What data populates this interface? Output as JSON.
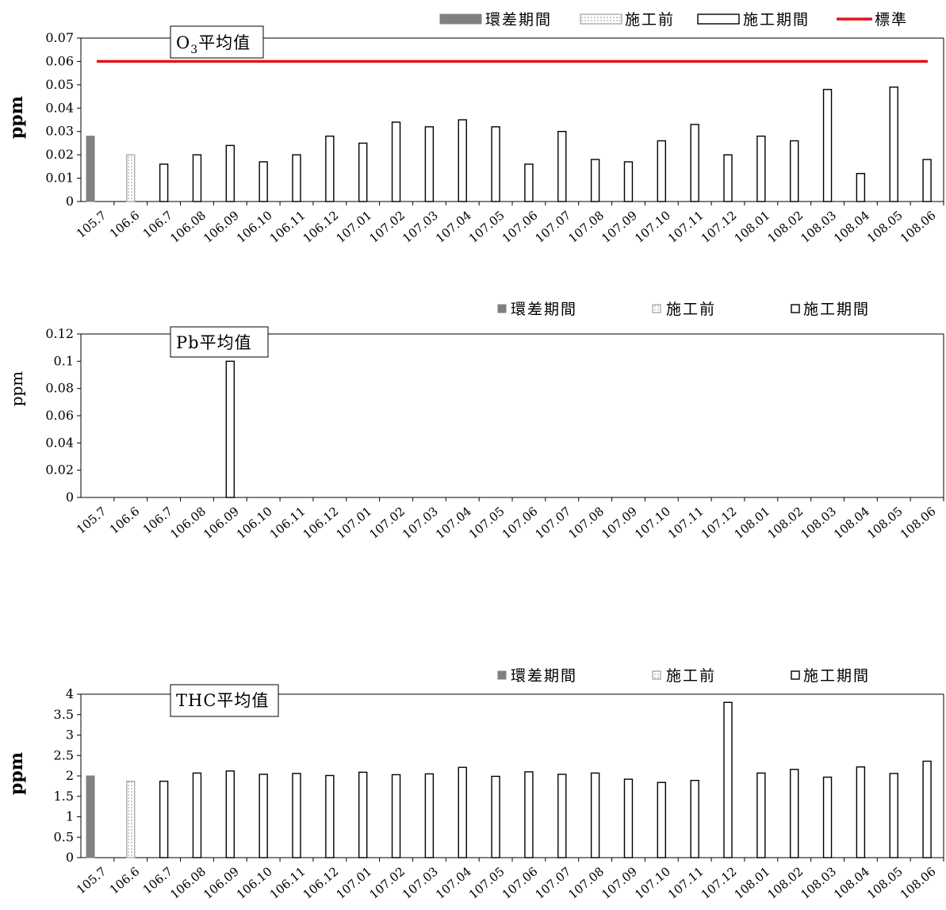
{
  "chart_data": [
    {
      "type": "bar",
      "title": "O3平均值",
      "title_main": "O",
      "title_sub": "3",
      "title_rest": "平均值",
      "ylabel": "ppm",
      "ylabel_bold": true,
      "ylim": [
        0,
        0.07
      ],
      "yticks": [
        "0",
        "0.01",
        "0.02",
        "0.03",
        "0.04",
        "0.05",
        "0.06",
        "0.07"
      ],
      "grid": false,
      "legend_position": "top-right",
      "legend": [
        {
          "label": "環差期間",
          "style": "baseline"
        },
        {
          "label": "施工前",
          "style": "pre"
        },
        {
          "label": "施工期間",
          "style": "during"
        },
        {
          "label": "標準",
          "style": "standard-line"
        }
      ],
      "standard": {
        "name": "標準",
        "value": 0.06,
        "color": "#e3141a"
      },
      "categories": [
        "105.7",
        "106.6",
        "106.7",
        "106.08",
        "106.09",
        "106.10",
        "106.11",
        "106.12",
        "107.01",
        "107.02",
        "107.03",
        "107.04",
        "107.05",
        "107.06",
        "107.07",
        "107.08",
        "107.09",
        "107.10",
        "107.11",
        "107.12",
        "108.01",
        "108.02",
        "108.03",
        "108.04",
        "108.05",
        "108.06"
      ],
      "series": [
        {
          "name": "環差期間",
          "style": "baseline",
          "values": [
            0.028,
            null,
            null,
            null,
            null,
            null,
            null,
            null,
            null,
            null,
            null,
            null,
            null,
            null,
            null,
            null,
            null,
            null,
            null,
            null,
            null,
            null,
            null,
            null,
            null,
            null
          ]
        },
        {
          "name": "施工前",
          "style": "pre",
          "values": [
            null,
            0.02,
            null,
            null,
            null,
            null,
            null,
            null,
            null,
            null,
            null,
            null,
            null,
            null,
            null,
            null,
            null,
            null,
            null,
            null,
            null,
            null,
            null,
            null,
            null,
            null
          ]
        },
        {
          "name": "施工期間",
          "style": "during",
          "values": [
            null,
            null,
            0.016,
            0.02,
            0.024,
            0.017,
            0.02,
            0.028,
            0.025,
            0.034,
            0.032,
            0.035,
            0.032,
            0.016,
            0.03,
            0.018,
            0.017,
            0.026,
            0.033,
            0.02,
            0.028,
            0.026,
            0.048,
            0.012,
            0.049,
            0.018
          ]
        }
      ]
    },
    {
      "type": "bar",
      "title": "Pb平均值",
      "ylabel": "ppm",
      "ylabel_bold": false,
      "ylim": [
        0,
        0.12
      ],
      "yticks": [
        "0",
        "0.02",
        "0.04",
        "0.06",
        "0.08",
        "0.1",
        "0.12"
      ],
      "grid": false,
      "legend_position": "top-right",
      "legend": [
        {
          "label": "環差期間",
          "style": "baseline"
        },
        {
          "label": "施工前",
          "style": "pre"
        },
        {
          "label": "施工期間",
          "style": "during"
        }
      ],
      "categories": [
        "105.7",
        "106.6",
        "106.7",
        "106.08",
        "106.09",
        "106.10",
        "106.11",
        "106.12",
        "107.01",
        "107.02",
        "107.03",
        "107.04",
        "107.05",
        "107.06",
        "107.07",
        "107.08",
        "107.09",
        "107.10",
        "107.11",
        "107.12",
        "108.01",
        "108.02",
        "108.03",
        "108.04",
        "108.05",
        "108.06"
      ],
      "series": [
        {
          "name": "環差期間",
          "style": "baseline",
          "values": [
            null,
            null,
            null,
            null,
            null,
            null,
            null,
            null,
            null,
            null,
            null,
            null,
            null,
            null,
            null,
            null,
            null,
            null,
            null,
            null,
            null,
            null,
            null,
            null,
            null,
            null
          ]
        },
        {
          "name": "施工前",
          "style": "pre",
          "values": [
            null,
            null,
            null,
            null,
            null,
            null,
            null,
            null,
            null,
            null,
            null,
            null,
            null,
            null,
            null,
            null,
            null,
            null,
            null,
            null,
            null,
            null,
            null,
            null,
            null,
            null
          ]
        },
        {
          "name": "施工期間",
          "style": "during",
          "values": [
            null,
            null,
            null,
            null,
            0.1,
            null,
            null,
            null,
            null,
            null,
            null,
            null,
            null,
            null,
            null,
            null,
            null,
            null,
            null,
            null,
            null,
            null,
            null,
            null,
            null,
            null
          ]
        }
      ]
    },
    {
      "type": "bar",
      "title": "THC平均值",
      "ylabel": "ppm",
      "ylabel_bold": true,
      "ylim": [
        0,
        4
      ],
      "yticks": [
        "0",
        "0.5",
        "1",
        "1.5",
        "2",
        "2.5",
        "3",
        "3.5",
        "4"
      ],
      "grid": false,
      "legend_position": "top-right",
      "legend": [
        {
          "label": "環差期間",
          "style": "baseline"
        },
        {
          "label": "施工前",
          "style": "pre"
        },
        {
          "label": "施工期間",
          "style": "during"
        }
      ],
      "categories": [
        "105.7",
        "106.6",
        "106.7",
        "106.08",
        "106.09",
        "106.10",
        "106.11",
        "106.12",
        "107.01",
        "107.02",
        "107.03",
        "107.04",
        "107.05",
        "107.06",
        "107.07",
        "107.08",
        "107.09",
        "107.10",
        "107.11",
        "107.12",
        "108.01",
        "108.02",
        "108.03",
        "108.04",
        "108.05",
        "108.06"
      ],
      "series": [
        {
          "name": "環差期間",
          "style": "baseline",
          "values": [
            2.0,
            null,
            null,
            null,
            null,
            null,
            null,
            null,
            null,
            null,
            null,
            null,
            null,
            null,
            null,
            null,
            null,
            null,
            null,
            null,
            null,
            null,
            null,
            null,
            null,
            null
          ]
        },
        {
          "name": "施工前",
          "style": "pre",
          "values": [
            null,
            1.87,
            null,
            null,
            null,
            null,
            null,
            null,
            null,
            null,
            null,
            null,
            null,
            null,
            null,
            null,
            null,
            null,
            null,
            null,
            null,
            null,
            null,
            null,
            null,
            null
          ]
        },
        {
          "name": "施工期間",
          "style": "during",
          "values": [
            null,
            null,
            1.87,
            2.07,
            2.12,
            2.04,
            2.06,
            2.01,
            2.09,
            2.03,
            2.05,
            2.21,
            1.99,
            2.1,
            2.04,
            2.07,
            1.92,
            1.84,
            1.89,
            3.8,
            2.07,
            2.16,
            1.97,
            2.22,
            2.06,
            2.36
          ]
        }
      ]
    }
  ],
  "colors": {
    "baseline_fill": "#808080",
    "pre_border": "#a6a6a6",
    "during_border": "#000000",
    "standard_line": "#e3141a"
  }
}
